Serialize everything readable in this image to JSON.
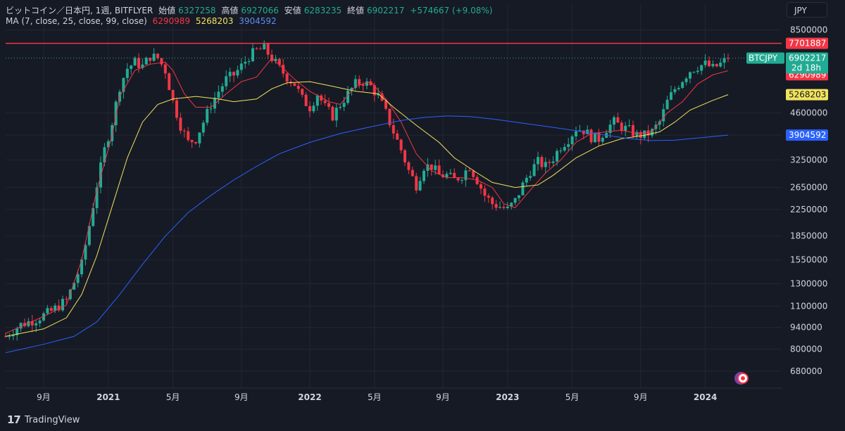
{
  "header": {
    "symbol_text": "ビットコイン／日本円, 1週, BITFLYER",
    "open_label": "始値",
    "open_value": "6327258",
    "high_label": "高値",
    "high_value": "6927066",
    "low_label": "安値",
    "low_value": "6283235",
    "close_label": "終値",
    "close_value": "6902217",
    "change_value": "+574667 (+9.08%)",
    "ma_label": "MA (7, close, 25, close, 99, close)",
    "ma7_value": "6290989",
    "ma25_value": "5268203",
    "ma99_value": "3904592"
  },
  "currency_button": "JPY",
  "brand": "TradingView",
  "colors": {
    "background": "#161a25",
    "up": "#22ab94",
    "down": "#f23645",
    "ma7": "#f23645",
    "ma25": "#f2e35c",
    "ma99": "#2962ff",
    "hline": "#f23645"
  },
  "chart_data": {
    "type": "candlestick",
    "x_ticks": [
      "9月",
      "2021",
      "5月",
      "9月",
      "2022",
      "5月",
      "9月",
      "2023",
      "5月",
      "9月",
      "2024"
    ],
    "x_tick_weeks": [
      10,
      27,
      44,
      62,
      80,
      97,
      115,
      132,
      149,
      167,
      184
    ],
    "y_ticks": [
      8500000,
      7701887,
      4600000,
      3904592,
      3250000,
      2650000,
      2250000,
      1850000,
      1550000,
      1300000,
      1100000,
      940000,
      800000,
      680000
    ],
    "y_scale": "log",
    "y_range": [
      600000,
      8800000
    ],
    "horizontal_line": 7701887,
    "last_price_label": {
      "symbol": "BTCJPY",
      "price": "6902217",
      "countdown": "2d 18h"
    },
    "ma_labels": {
      "ma7": "6290989",
      "ma25": "5268203",
      "ma99": "3904592"
    },
    "ma_labels_text": {
      "hline": "7701887"
    },
    "series": [
      {
        "name": "MA7",
        "values": [
          [
            0,
            900000
          ],
          [
            10,
            1020000
          ],
          [
            16,
            1110000
          ],
          [
            20,
            1550000
          ],
          [
            24,
            2600000
          ],
          [
            28,
            3900000
          ],
          [
            30,
            5200000
          ],
          [
            34,
            6300000
          ],
          [
            38,
            6600000
          ],
          [
            42,
            6700000
          ],
          [
            44,
            6300000
          ],
          [
            47,
            5300000
          ],
          [
            50,
            4800000
          ],
          [
            54,
            4800000
          ],
          [
            58,
            5300000
          ],
          [
            62,
            5800000
          ],
          [
            66,
            6000000
          ],
          [
            70,
            6900000
          ],
          [
            73,
            6400000
          ],
          [
            76,
            5900000
          ],
          [
            80,
            5400000
          ],
          [
            85,
            5000000
          ],
          [
            88,
            4900000
          ],
          [
            92,
            5600000
          ],
          [
            96,
            5800000
          ],
          [
            100,
            5100000
          ],
          [
            104,
            4300000
          ],
          [
            108,
            3400000
          ],
          [
            112,
            3000000
          ],
          [
            116,
            2850000
          ],
          [
            120,
            2850000
          ],
          [
            124,
            2800000
          ],
          [
            128,
            2650000
          ],
          [
            131,
            2350000
          ],
          [
            134,
            2280000
          ],
          [
            138,
            2600000
          ],
          [
            142,
            2950000
          ],
          [
            146,
            3250000
          ],
          [
            150,
            3700000
          ],
          [
            154,
            3950000
          ],
          [
            158,
            4000000
          ],
          [
            162,
            4050000
          ],
          [
            166,
            3950000
          ],
          [
            170,
            4000000
          ],
          [
            174,
            4600000
          ],
          [
            178,
            5000000
          ],
          [
            182,
            5700000
          ],
          [
            186,
            6100000
          ],
          [
            190,
            6290989
          ]
        ]
      },
      {
        "name": "MA25",
        "values": [
          [
            0,
            880000
          ],
          [
            10,
            930000
          ],
          [
            16,
            1010000
          ],
          [
            20,
            1200000
          ],
          [
            24,
            1600000
          ],
          [
            28,
            2300000
          ],
          [
            32,
            3300000
          ],
          [
            36,
            4300000
          ],
          [
            40,
            4900000
          ],
          [
            44,
            5100000
          ],
          [
            50,
            5200000
          ],
          [
            56,
            5100000
          ],
          [
            60,
            5000000
          ],
          [
            66,
            5100000
          ],
          [
            70,
            5500000
          ],
          [
            74,
            5750000
          ],
          [
            80,
            5800000
          ],
          [
            86,
            5600000
          ],
          [
            92,
            5400000
          ],
          [
            98,
            5300000
          ],
          [
            102,
            4800000
          ],
          [
            108,
            4200000
          ],
          [
            114,
            3700000
          ],
          [
            118,
            3300000
          ],
          [
            124,
            2950000
          ],
          [
            128,
            2750000
          ],
          [
            134,
            2650000
          ],
          [
            140,
            2700000
          ],
          [
            144,
            2900000
          ],
          [
            150,
            3300000
          ],
          [
            156,
            3600000
          ],
          [
            162,
            3800000
          ],
          [
            168,
            3900000
          ],
          [
            172,
            4000000
          ],
          [
            176,
            4300000
          ],
          [
            180,
            4700000
          ],
          [
            186,
            5050000
          ],
          [
            190,
            5268203
          ]
        ]
      },
      {
        "name": "MA99",
        "values": [
          [
            0,
            780000
          ],
          [
            10,
            830000
          ],
          [
            18,
            880000
          ],
          [
            24,
            980000
          ],
          [
            30,
            1200000
          ],
          [
            36,
            1500000
          ],
          [
            42,
            1850000
          ],
          [
            48,
            2200000
          ],
          [
            54,
            2500000
          ],
          [
            60,
            2800000
          ],
          [
            66,
            3100000
          ],
          [
            72,
            3400000
          ],
          [
            80,
            3700000
          ],
          [
            88,
            3950000
          ],
          [
            96,
            4150000
          ],
          [
            104,
            4350000
          ],
          [
            110,
            4450000
          ],
          [
            116,
            4500000
          ],
          [
            122,
            4480000
          ],
          [
            128,
            4400000
          ],
          [
            134,
            4300000
          ],
          [
            140,
            4200000
          ],
          [
            146,
            4100000
          ],
          [
            152,
            4000000
          ],
          [
            158,
            3900000
          ],
          [
            164,
            3800000
          ],
          [
            170,
            3750000
          ],
          [
            176,
            3760000
          ],
          [
            182,
            3820000
          ],
          [
            190,
            3904592
          ]
        ]
      }
    ],
    "candle_path": [
      [
        0,
        880000
      ],
      [
        4,
        960000
      ],
      [
        8,
        1000000
      ],
      [
        12,
        1060000
      ],
      [
        16,
        1150000
      ],
      [
        20,
        1500000
      ],
      [
        22,
        2000000
      ],
      [
        24,
        2700000
      ],
      [
        26,
        3500000
      ],
      [
        28,
        4300000
      ],
      [
        30,
        5600000
      ],
      [
        32,
        6400000
      ],
      [
        34,
        6700000
      ],
      [
        36,
        6500000
      ],
      [
        38,
        7000000
      ],
      [
        40,
        6900000
      ],
      [
        42,
        6300000
      ],
      [
        44,
        5000000
      ],
      [
        46,
        4200000
      ],
      [
        48,
        3700000
      ],
      [
        50,
        3800000
      ],
      [
        52,
        4300000
      ],
      [
        54,
        4900000
      ],
      [
        56,
        5400000
      ],
      [
        58,
        5900000
      ],
      [
        60,
        6100000
      ],
      [
        62,
        6500000
      ],
      [
        64,
        7000000
      ],
      [
        66,
        7300000
      ],
      [
        68,
        7400000
      ],
      [
        70,
        6900000
      ],
      [
        72,
        6400000
      ],
      [
        74,
        6000000
      ],
      [
        76,
        5700000
      ],
      [
        78,
        5100000
      ],
      [
        80,
        4800000
      ],
      [
        82,
        5300000
      ],
      [
        84,
        4800000
      ],
      [
        86,
        4500000
      ],
      [
        88,
        4900000
      ],
      [
        90,
        5300000
      ],
      [
        92,
        5700000
      ],
      [
        94,
        5800000
      ],
      [
        96,
        5600000
      ],
      [
        98,
        5200000
      ],
      [
        100,
        4600000
      ],
      [
        102,
        4000000
      ],
      [
        104,
        3500000
      ],
      [
        106,
        3000000
      ],
      [
        108,
        2700000
      ],
      [
        110,
        3100000
      ],
      [
        112,
        3100000
      ],
      [
        114,
        2900000
      ],
      [
        116,
        2900000
      ],
      [
        118,
        2800000
      ],
      [
        120,
        2900000
      ],
      [
        122,
        3100000
      ],
      [
        124,
        2800000
      ],
      [
        126,
        2500000
      ],
      [
        128,
        2350000
      ],
      [
        130,
        2300000
      ],
      [
        132,
        2250000
      ],
      [
        134,
        2400000
      ],
      [
        136,
        2700000
      ],
      [
        138,
        3000000
      ],
      [
        140,
        3200000
      ],
      [
        142,
        3100000
      ],
      [
        144,
        3300000
      ],
      [
        146,
        3600000
      ],
      [
        148,
        3800000
      ],
      [
        150,
        4100000
      ],
      [
        152,
        4050000
      ],
      [
        154,
        3850000
      ],
      [
        156,
        3800000
      ],
      [
        158,
        4100000
      ],
      [
        160,
        4300000
      ],
      [
        162,
        4150000
      ],
      [
        164,
        4050000
      ],
      [
        166,
        3900000
      ],
      [
        168,
        3900000
      ],
      [
        170,
        4000000
      ],
      [
        172,
        4300000
      ],
      [
        174,
        5000000
      ],
      [
        176,
        5500000
      ],
      [
        178,
        5900000
      ],
      [
        180,
        6300000
      ],
      [
        182,
        6500000
      ],
      [
        184,
        6600000
      ],
      [
        186,
        6400000
      ],
      [
        188,
        6600000
      ],
      [
        190,
        6902217
      ]
    ]
  }
}
